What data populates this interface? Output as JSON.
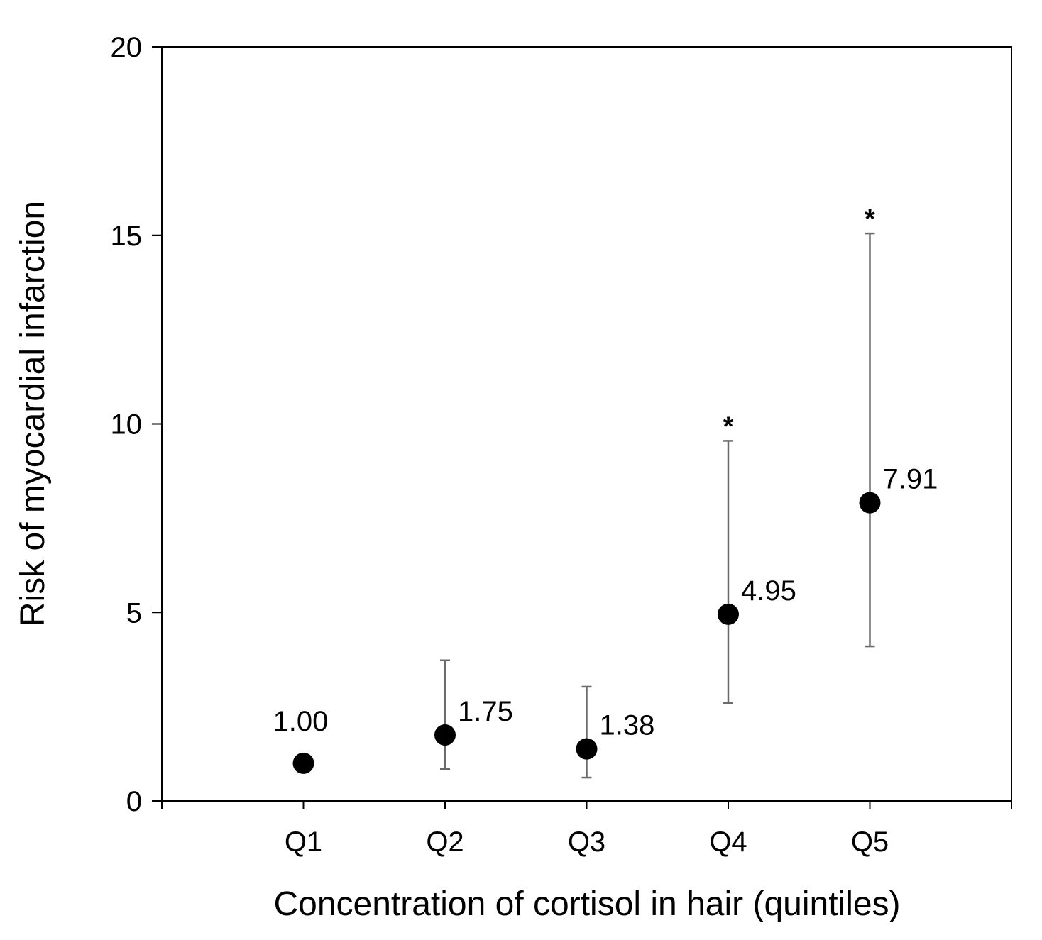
{
  "chart_data": {
    "type": "scatter",
    "categories": [
      "Q1",
      "Q2",
      "Q3",
      "Q4",
      "Q5"
    ],
    "xlabel": "Concentration of cortisol in hair (quintiles)",
    "ylabel": "Risk of myocardial infarction",
    "ylim": [
      0,
      20
    ],
    "yticks": [
      "0",
      "5",
      "10",
      "15",
      "20"
    ],
    "grid": false,
    "series": [
      {
        "values": [
          1.0,
          1.75,
          1.38,
          4.95,
          7.91
        ],
        "lower": [
          null,
          0.85,
          0.62,
          2.6,
          4.1
        ],
        "upper": [
          null,
          3.73,
          3.03,
          9.55,
          15.05
        ],
        "labels": [
          "1.00",
          "1.75",
          "1.38",
          "4.95",
          "7.91"
        ],
        "significance": [
          "",
          "",
          "",
          "*",
          "*"
        ]
      }
    ],
    "colors": {
      "marker": "#000000",
      "error_bar": "#6b6b6b",
      "axis": "#000000"
    }
  }
}
